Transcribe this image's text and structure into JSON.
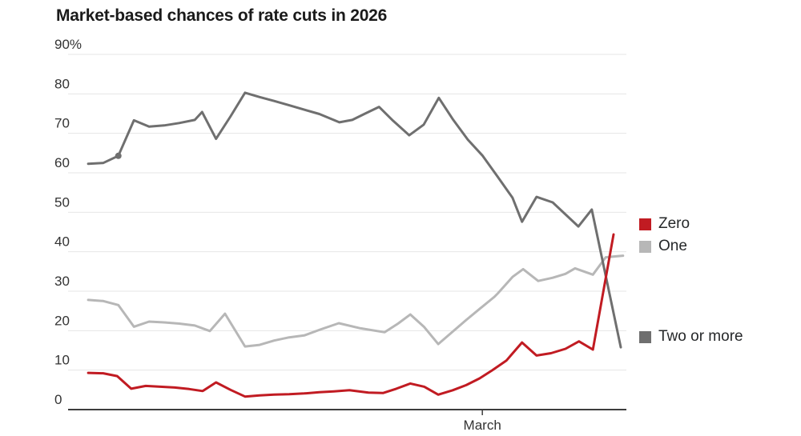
{
  "chart_data": {
    "type": "line",
    "title": "Market-based chances of rate cuts in 2026",
    "y_axis": {
      "min": 0,
      "max": 90,
      "unit": "%",
      "ticks": [
        {
          "value": 90,
          "label": "90%"
        },
        {
          "value": 80,
          "label": "80"
        },
        {
          "value": 70,
          "label": "70"
        },
        {
          "value": 60,
          "label": "60"
        },
        {
          "value": 50,
          "label": "50"
        },
        {
          "value": 40,
          "label": "40"
        },
        {
          "value": 30,
          "label": "30"
        },
        {
          "value": 20,
          "label": "20"
        },
        {
          "value": 10,
          "label": "10"
        },
        {
          "value": 0,
          "label": "0"
        }
      ],
      "grid": true
    },
    "x_axis": {
      "tick_label": "March",
      "tick_fraction": 0.742
    },
    "legend_position": "right-of-line-ends",
    "series": [
      {
        "name": "Zero",
        "color": "#c11b22",
        "points": [
          [
            0.036,
            9.3
          ],
          [
            0.063,
            9.2
          ],
          [
            0.088,
            8.5
          ],
          [
            0.113,
            5.3
          ],
          [
            0.139,
            6.0
          ],
          [
            0.165,
            5.8
          ],
          [
            0.191,
            5.6
          ],
          [
            0.217,
            5.2
          ],
          [
            0.241,
            4.7
          ],
          [
            0.265,
            6.9
          ],
          [
            0.291,
            5.0
          ],
          [
            0.317,
            3.3
          ],
          [
            0.343,
            3.6
          ],
          [
            0.369,
            3.8
          ],
          [
            0.396,
            3.9
          ],
          [
            0.423,
            4.1
          ],
          [
            0.45,
            4.4
          ],
          [
            0.476,
            4.6
          ],
          [
            0.504,
            4.9
          ],
          [
            0.538,
            4.3
          ],
          [
            0.564,
            4.2
          ],
          [
            0.588,
            5.3
          ],
          [
            0.613,
            6.6
          ],
          [
            0.638,
            5.8
          ],
          [
            0.663,
            3.8
          ],
          [
            0.689,
            4.9
          ],
          [
            0.713,
            6.2
          ],
          [
            0.737,
            7.9
          ],
          [
            0.76,
            10.0
          ],
          [
            0.785,
            12.4
          ],
          [
            0.813,
            17.0
          ],
          [
            0.839,
            13.7
          ],
          [
            0.865,
            14.3
          ],
          [
            0.891,
            15.4
          ],
          [
            0.915,
            17.3
          ],
          [
            0.94,
            15.2
          ],
          [
            0.977,
            44.4
          ]
        ]
      },
      {
        "name": "One",
        "color": "#b7b7b7",
        "points": [
          [
            0.036,
            27.8
          ],
          [
            0.063,
            27.5
          ],
          [
            0.09,
            26.5
          ],
          [
            0.118,
            21.0
          ],
          [
            0.145,
            22.3
          ],
          [
            0.172,
            22.1
          ],
          [
            0.199,
            21.8
          ],
          [
            0.227,
            21.3
          ],
          [
            0.254,
            19.9
          ],
          [
            0.281,
            24.3
          ],
          [
            0.317,
            16.0
          ],
          [
            0.343,
            16.4
          ],
          [
            0.369,
            17.5
          ],
          [
            0.396,
            18.3
          ],
          [
            0.423,
            18.8
          ],
          [
            0.452,
            20.3
          ],
          [
            0.485,
            21.9
          ],
          [
            0.524,
            20.6
          ],
          [
            0.567,
            19.6
          ],
          [
            0.591,
            21.8
          ],
          [
            0.613,
            24.1
          ],
          [
            0.638,
            20.9
          ],
          [
            0.663,
            16.6
          ],
          [
            0.713,
            22.7
          ],
          [
            0.737,
            25.5
          ],
          [
            0.763,
            28.5
          ],
          [
            0.77,
            29.5
          ],
          [
            0.796,
            33.6
          ],
          [
            0.815,
            35.6
          ],
          [
            0.842,
            32.6
          ],
          [
            0.868,
            33.4
          ],
          [
            0.891,
            34.4
          ],
          [
            0.908,
            35.8
          ],
          [
            0.94,
            34.2
          ],
          [
            0.963,
            38.6
          ],
          [
            0.994,
            39.0
          ]
        ]
      },
      {
        "name": "Two or more",
        "color": "#6f6f6f",
        "marker_point": [
          0.09,
          64.3
        ],
        "points": [
          [
            0.036,
            62.3
          ],
          [
            0.063,
            62.5
          ],
          [
            0.09,
            64.3
          ],
          [
            0.118,
            73.3
          ],
          [
            0.145,
            71.7
          ],
          [
            0.172,
            72.0
          ],
          [
            0.199,
            72.6
          ],
          [
            0.227,
            73.4
          ],
          [
            0.24,
            75.4
          ],
          [
            0.265,
            68.6
          ],
          [
            0.291,
            74.3
          ],
          [
            0.317,
            80.3
          ],
          [
            0.343,
            79.2
          ],
          [
            0.369,
            78.2
          ],
          [
            0.396,
            77.1
          ],
          [
            0.423,
            76.0
          ],
          [
            0.45,
            74.9
          ],
          [
            0.486,
            72.8
          ],
          [
            0.509,
            73.4
          ],
          [
            0.532,
            75.0
          ],
          [
            0.557,
            76.7
          ],
          [
            0.582,
            73.2
          ],
          [
            0.611,
            69.5
          ],
          [
            0.637,
            72.2
          ],
          [
            0.664,
            79.0
          ],
          [
            0.69,
            73.4
          ],
          [
            0.716,
            68.4
          ],
          [
            0.742,
            64.4
          ],
          [
            0.768,
            59.3
          ],
          [
            0.796,
            53.7
          ],
          [
            0.813,
            47.6
          ],
          [
            0.839,
            53.9
          ],
          [
            0.868,
            52.5
          ],
          [
            0.914,
            46.4
          ],
          [
            0.938,
            50.7
          ],
          [
            0.99,
            15.8
          ]
        ]
      }
    ],
    "style": {
      "gridline_color": "#e6e6e6",
      "axis_color": "#3d3d3d",
      "tick_label_color": "#333333",
      "line_width": 3
    }
  }
}
